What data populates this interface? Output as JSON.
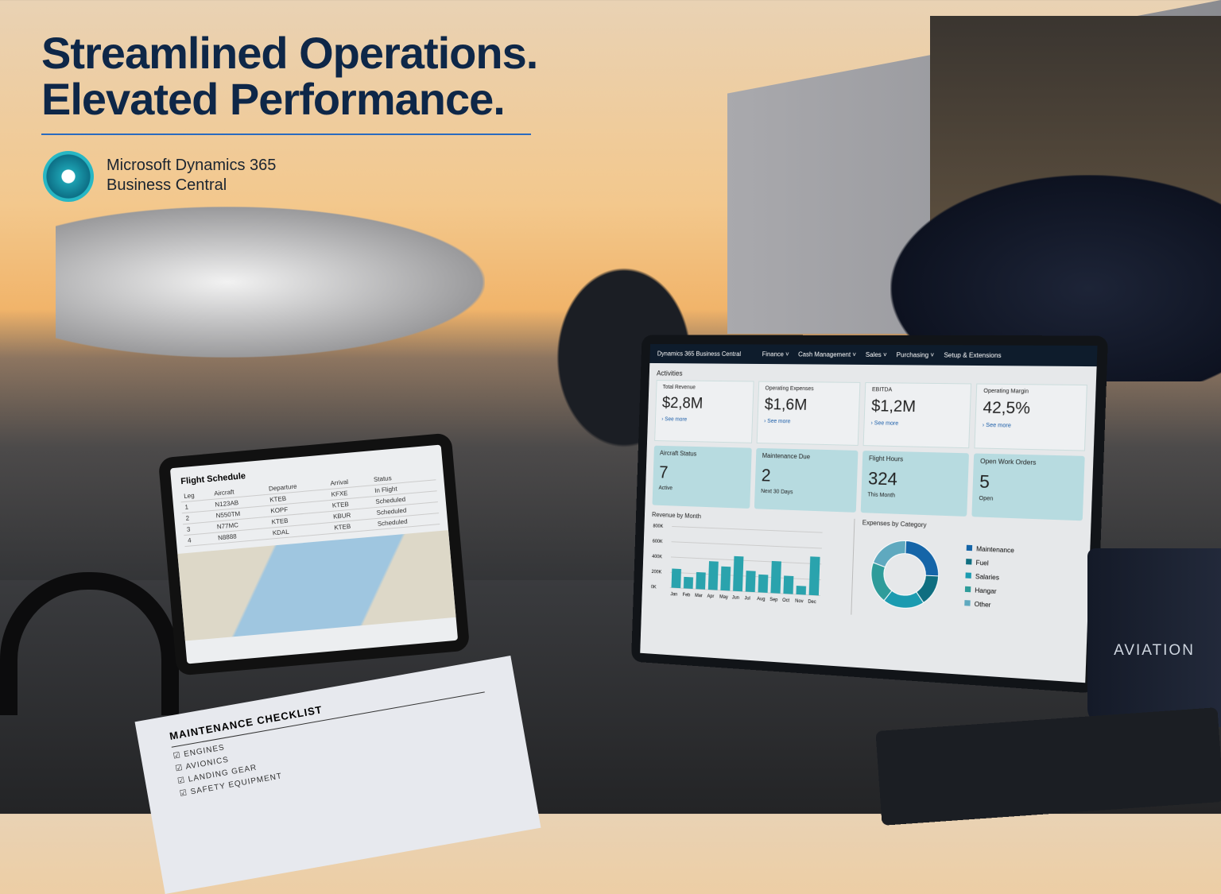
{
  "headline": {
    "line1": "Streamlined Operations.",
    "line2": "Elevated Performance."
  },
  "brand": {
    "line1": "Microsoft Dynamics 365",
    "line2": "Business Central",
    "accent": "#1c9fb0"
  },
  "tablet": {
    "title": "Flight Schedule",
    "columns": [
      "Leg",
      "Aircraft",
      "Departure",
      "Arrival",
      "Status"
    ],
    "rows": [
      [
        "1",
        "N123AB",
        "KTEB",
        "KFXE",
        "In Flight"
      ],
      [
        "2",
        "N550TM",
        "KOPF",
        "KTEB",
        "Scheduled"
      ],
      [
        "3",
        "N77MC",
        "KTEB",
        "KBUR",
        "Scheduled"
      ],
      [
        "4",
        "N8888",
        "KDAL",
        "KTEB",
        "Scheduled"
      ]
    ]
  },
  "dashboard": {
    "app_title": "Dynamics 365 Business Central",
    "nav": [
      "Finance ˅",
      "Cash Management ˅",
      "Sales ˅",
      "Purchasing ˅",
      "Setup & Extensions"
    ],
    "section": "Activities",
    "kpis": [
      {
        "label": "Total Revenue",
        "value": "$2,8M",
        "link": "› See more"
      },
      {
        "label": "Operating Expenses",
        "value": "$1,6M",
        "link": "› See more"
      },
      {
        "label": "EBITDA",
        "value": "$1,2M",
        "link": "› See more"
      },
      {
        "label": "Operating Margin",
        "value": "42,5%",
        "link": "› See more"
      }
    ],
    "tiles": [
      {
        "label": "Aircraft Status",
        "value": "7",
        "sub": "Active"
      },
      {
        "label": "Maintenance Due",
        "value": "2",
        "sub": "Next 30 Days"
      },
      {
        "label": "Flight Hours",
        "value": "324",
        "sub": "This Month"
      },
      {
        "label": "Open Work Orders",
        "value": "5",
        "sub": "Open"
      }
    ]
  },
  "chart_data": [
    {
      "type": "bar",
      "title": "Revenue by Month",
      "categories": [
        "Jan",
        "Feb",
        "Mar",
        "Apr",
        "May",
        "Jun",
        "Jul",
        "Aug",
        "Sep",
        "Oct",
        "Nov",
        "Dec"
      ],
      "values": [
        250,
        150,
        220,
        370,
        310,
        450,
        270,
        230,
        410,
        230,
        110,
        490
      ],
      "yticks": [
        "0K",
        "200K",
        "400K",
        "600K",
        "800K"
      ],
      "ylim": [
        0,
        800
      ],
      "color": "#2aa3ad"
    },
    {
      "type": "pie",
      "title": "Expenses by Category",
      "labels": [
        "Maintenance",
        "Fuel",
        "Salaries",
        "Hangar",
        "Other"
      ],
      "values": [
        25,
        15,
        20,
        20,
        20
      ],
      "colors": [
        "#1565a8",
        "#0f6e80",
        "#1b9bb0",
        "#2f9c9a",
        "#5fa9bf"
      ]
    }
  ],
  "mug": {
    "text": "AVIATION"
  },
  "checklist": {
    "title": "MAINTENANCE CHECKLIST",
    "items": [
      "ENGINES",
      "AVIONICS",
      "LANDING GEAR",
      "SAFETY EQUIPMENT"
    ]
  }
}
